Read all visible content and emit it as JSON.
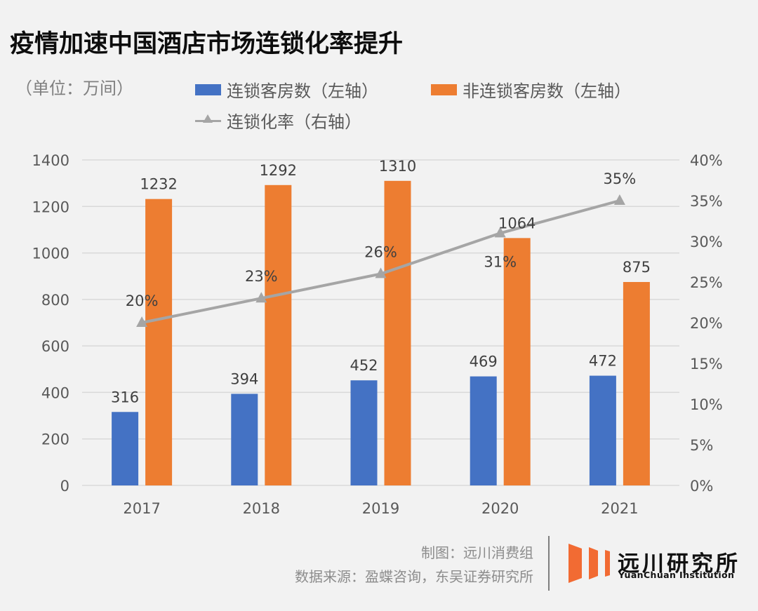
{
  "title": "疫情加速中国酒店市场连锁化率提升",
  "unit_label": "（单位：万间）",
  "legend": [
    {
      "label": "连锁客房数（左轴）",
      "type": "bar",
      "color": "#4472c4"
    },
    {
      "label": "非连锁客房数（左轴）",
      "type": "bar",
      "color": "#ed7d31"
    },
    {
      "label": "连锁化率（右轴）",
      "type": "line-triangle",
      "color": "#a5a5a5"
    }
  ],
  "chart_data": {
    "type": "bar",
    "title": "疫情加速中国酒店市场连锁化率提升",
    "categories": [
      "2017",
      "2018",
      "2019",
      "2020",
      "2021"
    ],
    "series": [
      {
        "name": "连锁客房数（左轴）",
        "type": "bar",
        "axis": "left",
        "color": "#4472c4",
        "values": [
          316,
          394,
          452,
          469,
          472
        ],
        "labels": [
          "316",
          "394",
          "452",
          "469",
          "472"
        ]
      },
      {
        "name": "非连锁客房数（左轴）",
        "type": "bar",
        "axis": "left",
        "color": "#ed7d31",
        "values": [
          1232,
          1292,
          1310,
          1064,
          875
        ],
        "labels": [
          "1232",
          "1292",
          "1310",
          "1064",
          "875"
        ]
      },
      {
        "name": "连锁化率（右轴）",
        "type": "line",
        "axis": "right",
        "marker": "triangle",
        "color": "#a5a5a5",
        "values": [
          0.2,
          0.23,
          0.26,
          0.31,
          0.35
        ],
        "labels": [
          "20%",
          "23%",
          "26%",
          "31%",
          "35%"
        ]
      }
    ],
    "y_left": {
      "label": "（单位：万间）",
      "lim": [
        0,
        1400
      ],
      "ticks": [
        0,
        200,
        400,
        600,
        800,
        1000,
        1200,
        1400
      ],
      "tick_labels": [
        "0",
        "200",
        "400",
        "600",
        "800",
        "1000",
        "1200",
        "1400"
      ]
    },
    "y_right": {
      "lim": [
        0,
        0.4
      ],
      "ticks": [
        0,
        0.05,
        0.1,
        0.15,
        0.2,
        0.25,
        0.3,
        0.35,
        0.4
      ],
      "tick_labels": [
        "0%",
        "5%",
        "10%",
        "15%",
        "20%",
        "25%",
        "30%",
        "35%",
        "40%"
      ]
    },
    "xlabel": "",
    "grid": true,
    "legend_position": "top"
  },
  "footer": {
    "credit": "制图：远川消费组",
    "source": "数据来源：盈蝶咨询，东吴证券研究所"
  },
  "logo": {
    "name_cn": "远川研究所",
    "name_en": "YuanChuan Institution",
    "color": "#f26b33"
  }
}
